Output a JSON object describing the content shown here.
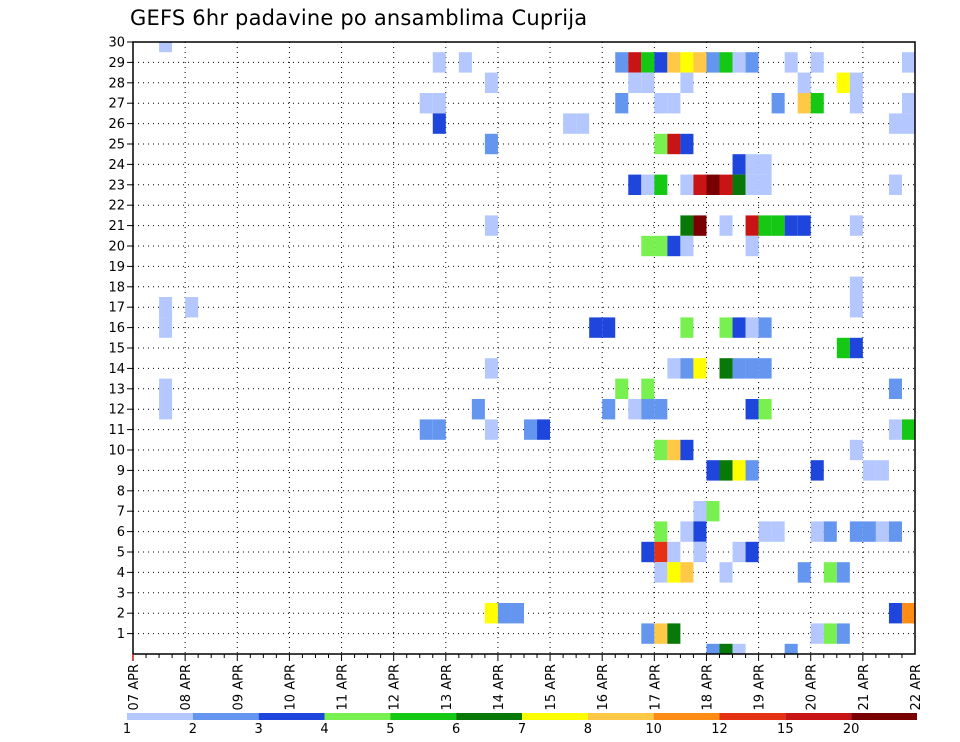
{
  "chart_data": {
    "type": "heatmap",
    "title": "GEFS 6hr padavine po ansamblima Cuprija",
    "xlabel": "",
    "ylabel": "",
    "x_ticks": [
      "07 APR",
      "08 APR",
      "09 APR",
      "10 APR",
      "11 APR",
      "12 APR",
      "13 APR",
      "14 APR",
      "15 APR",
      "16 APR",
      "17 APR",
      "18 APR",
      "19 APR",
      "20 APR",
      "21 APR",
      "22 APR"
    ],
    "x_range": [
      "07 APR",
      "22 APR"
    ],
    "time_step_hours": 6,
    "y_ticks": [
      1,
      2,
      3,
      4,
      5,
      6,
      7,
      8,
      9,
      10,
      11,
      12,
      13,
      14,
      15,
      16,
      17,
      18,
      19,
      20,
      21,
      22,
      23,
      24,
      25,
      26,
      27,
      28,
      29,
      30
    ],
    "y_range": [
      0,
      30
    ],
    "grid": "dotted",
    "legend": {
      "placement": "bottom",
      "labels": [
        "1",
        "2",
        "3",
        "4",
        "5",
        "6",
        "7",
        "8",
        "10",
        "12",
        "15",
        "20"
      ],
      "colors": [
        "#b4c8ff",
        "#6496f0",
        "#1e46dc",
        "#78f050",
        "#14c814",
        "#087808",
        "#ffff00",
        "#ffc846",
        "#ff8c14",
        "#e63214",
        "#c81414",
        "#780000"
      ]
    },
    "cells": [
      {
        "t": 0.5,
        "m": 30,
        "c": 1
      },
      {
        "t": 0.5,
        "m": 17,
        "c": 1
      },
      {
        "t": 1.0,
        "m": 17,
        "c": 1
      },
      {
        "t": 0.5,
        "m": 16,
        "c": 1
      },
      {
        "t": 0.5,
        "m": 13,
        "c": 1
      },
      {
        "t": 0.5,
        "m": 12,
        "c": 1
      },
      {
        "t": 5.75,
        "m": 29,
        "c": 1
      },
      {
        "t": 6.25,
        "m": 29,
        "c": 1
      },
      {
        "t": 5.5,
        "m": 27,
        "c": 1
      },
      {
        "t": 5.75,
        "m": 27,
        "c": 1
      },
      {
        "t": 5.75,
        "m": 26,
        "c": 3
      },
      {
        "t": 5.5,
        "m": 11,
        "c": 2
      },
      {
        "t": 5.75,
        "m": 11,
        "c": 2
      },
      {
        "t": 6.75,
        "m": 28,
        "c": 1
      },
      {
        "t": 6.75,
        "m": 25,
        "c": 2
      },
      {
        "t": 6.75,
        "m": 21,
        "c": 1
      },
      {
        "t": 6.75,
        "m": 14,
        "c": 1
      },
      {
        "t": 6.5,
        "m": 12,
        "c": 2
      },
      {
        "t": 6.75,
        "m": 11,
        "c": 1
      },
      {
        "t": 6.75,
        "m": 2,
        "c": 7
      },
      {
        "t": 7.0,
        "m": 2,
        "c": 2
      },
      {
        "t": 7.25,
        "m": 2,
        "c": 2
      },
      {
        "t": 7.5,
        "m": 11,
        "c": 2
      },
      {
        "t": 7.75,
        "m": 11,
        "c": 3
      },
      {
        "t": 8.25,
        "m": 26,
        "c": 1
      },
      {
        "t": 8.5,
        "m": 26,
        "c": 1
      },
      {
        "t": 8.75,
        "m": 16,
        "c": 3
      },
      {
        "t": 9.0,
        "m": 16,
        "c": 3
      },
      {
        "t": 9.25,
        "m": 29,
        "c": 2
      },
      {
        "t": 9.5,
        "m": 29,
        "c": 11
      },
      {
        "t": 9.75,
        "m": 29,
        "c": 5
      },
      {
        "t": 10.0,
        "m": 29,
        "c": 3
      },
      {
        "t": 10.25,
        "m": 29,
        "c": 8
      },
      {
        "t": 10.5,
        "m": 29,
        "c": 7
      },
      {
        "t": 10.75,
        "m": 29,
        "c": 8
      },
      {
        "t": 11.0,
        "m": 29,
        "c": 2
      },
      {
        "t": 11.25,
        "m": 29,
        "c": 5
      },
      {
        "t": 11.5,
        "m": 29,
        "c": 1
      },
      {
        "t": 11.75,
        "m": 29,
        "c": 2
      },
      {
        "t": 12.5,
        "m": 29,
        "c": 1
      },
      {
        "t": 13.0,
        "m": 29,
        "c": 1
      },
      {
        "t": 14.75,
        "m": 29,
        "c": 1
      },
      {
        "t": 9.5,
        "m": 28,
        "c": 1
      },
      {
        "t": 9.75,
        "m": 28,
        "c": 1
      },
      {
        "t": 10.5,
        "m": 28,
        "c": 1
      },
      {
        "t": 12.75,
        "m": 28,
        "c": 1
      },
      {
        "t": 13.5,
        "m": 28,
        "c": 7
      },
      {
        "t": 13.75,
        "m": 28,
        "c": 1
      },
      {
        "t": 9.25,
        "m": 27,
        "c": 2
      },
      {
        "t": 10.0,
        "m": 27,
        "c": 1
      },
      {
        "t": 10.25,
        "m": 27,
        "c": 1
      },
      {
        "t": 12.25,
        "m": 27,
        "c": 2
      },
      {
        "t": 12.75,
        "m": 27,
        "c": 8
      },
      {
        "t": 13.0,
        "m": 27,
        "c": 5
      },
      {
        "t": 13.75,
        "m": 27,
        "c": 1
      },
      {
        "t": 14.75,
        "m": 27,
        "c": 1
      },
      {
        "t": 14.5,
        "m": 26,
        "c": 1
      },
      {
        "t": 14.75,
        "m": 26,
        "c": 1
      },
      {
        "t": 10.0,
        "m": 25,
        "c": 4
      },
      {
        "t": 10.25,
        "m": 25,
        "c": 11
      },
      {
        "t": 10.5,
        "m": 25,
        "c": 3
      },
      {
        "t": 11.5,
        "m": 24,
        "c": 3
      },
      {
        "t": 11.75,
        "m": 24,
        "c": 1
      },
      {
        "t": 12.0,
        "m": 24,
        "c": 1
      },
      {
        "t": 9.5,
        "m": 23,
        "c": 3
      },
      {
        "t": 9.75,
        "m": 23,
        "c": 1
      },
      {
        "t": 10.0,
        "m": 23,
        "c": 5
      },
      {
        "t": 10.5,
        "m": 23,
        "c": 1
      },
      {
        "t": 10.75,
        "m": 23,
        "c": 11
      },
      {
        "t": 11.0,
        "m": 23,
        "c": 12
      },
      {
        "t": 11.25,
        "m": 23,
        "c": 11
      },
      {
        "t": 11.5,
        "m": 23,
        "c": 6
      },
      {
        "t": 11.75,
        "m": 23,
        "c": 1
      },
      {
        "t": 12.0,
        "m": 23,
        "c": 1
      },
      {
        "t": 14.5,
        "m": 23,
        "c": 1
      },
      {
        "t": 10.5,
        "m": 21,
        "c": 6
      },
      {
        "t": 10.75,
        "m": 21,
        "c": 12
      },
      {
        "t": 11.25,
        "m": 21,
        "c": 1
      },
      {
        "t": 11.75,
        "m": 21,
        "c": 11
      },
      {
        "t": 12.0,
        "m": 21,
        "c": 5
      },
      {
        "t": 12.25,
        "m": 21,
        "c": 5
      },
      {
        "t": 12.5,
        "m": 21,
        "c": 3
      },
      {
        "t": 12.75,
        "m": 21,
        "c": 3
      },
      {
        "t": 13.75,
        "m": 21,
        "c": 1
      },
      {
        "t": 9.75,
        "m": 20,
        "c": 4
      },
      {
        "t": 10.0,
        "m": 20,
        "c": 4
      },
      {
        "t": 10.25,
        "m": 20,
        "c": 3
      },
      {
        "t": 10.5,
        "m": 20,
        "c": 1
      },
      {
        "t": 11.75,
        "m": 20,
        "c": 1
      },
      {
        "t": 13.75,
        "m": 18,
        "c": 1
      },
      {
        "t": 13.75,
        "m": 17,
        "c": 1
      },
      {
        "t": 10.5,
        "m": 16,
        "c": 4
      },
      {
        "t": 11.25,
        "m": 16,
        "c": 4
      },
      {
        "t": 11.5,
        "m": 16,
        "c": 3
      },
      {
        "t": 11.75,
        "m": 16,
        "c": 1
      },
      {
        "t": 12.0,
        "m": 16,
        "c": 2
      },
      {
        "t": 13.5,
        "m": 15,
        "c": 5
      },
      {
        "t": 13.75,
        "m": 15,
        "c": 3
      },
      {
        "t": 10.25,
        "m": 14,
        "c": 1
      },
      {
        "t": 10.5,
        "m": 14,
        "c": 2
      },
      {
        "t": 10.75,
        "m": 14,
        "c": 7
      },
      {
        "t": 11.25,
        "m": 14,
        "c": 6
      },
      {
        "t": 11.5,
        "m": 14,
        "c": 2
      },
      {
        "t": 11.75,
        "m": 14,
        "c": 2
      },
      {
        "t": 12.0,
        "m": 14,
        "c": 2
      },
      {
        "t": 9.25,
        "m": 13,
        "c": 4
      },
      {
        "t": 9.75,
        "m": 13,
        "c": 4
      },
      {
        "t": 14.5,
        "m": 13,
        "c": 2
      },
      {
        "t": 9.0,
        "m": 12,
        "c": 2
      },
      {
        "t": 9.5,
        "m": 12,
        "c": 1
      },
      {
        "t": 9.75,
        "m": 12,
        "c": 2
      },
      {
        "t": 10.0,
        "m": 12,
        "c": 2
      },
      {
        "t": 11.75,
        "m": 12,
        "c": 3
      },
      {
        "t": 12.0,
        "m": 12,
        "c": 4
      },
      {
        "t": 14.5,
        "m": 11,
        "c": 1
      },
      {
        "t": 14.75,
        "m": 11,
        "c": 5
      },
      {
        "t": 10.0,
        "m": 10,
        "c": 4
      },
      {
        "t": 10.25,
        "m": 10,
        "c": 8
      },
      {
        "t": 10.5,
        "m": 10,
        "c": 3
      },
      {
        "t": 13.75,
        "m": 10,
        "c": 1
      },
      {
        "t": 11.0,
        "m": 9,
        "c": 3
      },
      {
        "t": 11.25,
        "m": 9,
        "c": 6
      },
      {
        "t": 11.5,
        "m": 9,
        "c": 7
      },
      {
        "t": 11.75,
        "m": 9,
        "c": 2
      },
      {
        "t": 13.0,
        "m": 9,
        "c": 3
      },
      {
        "t": 14.0,
        "m": 9,
        "c": 1
      },
      {
        "t": 14.25,
        "m": 9,
        "c": 1
      },
      {
        "t": 10.75,
        "m": 7,
        "c": 1
      },
      {
        "t": 11.0,
        "m": 7,
        "c": 4
      },
      {
        "t": 10.0,
        "m": 6,
        "c": 4
      },
      {
        "t": 10.5,
        "m": 6,
        "c": 1
      },
      {
        "t": 10.75,
        "m": 6,
        "c": 3
      },
      {
        "t": 12.0,
        "m": 6,
        "c": 1
      },
      {
        "t": 12.25,
        "m": 6,
        "c": 1
      },
      {
        "t": 13.0,
        "m": 6,
        "c": 1
      },
      {
        "t": 13.25,
        "m": 6,
        "c": 2
      },
      {
        "t": 13.75,
        "m": 6,
        "c": 2
      },
      {
        "t": 14.0,
        "m": 6,
        "c": 2
      },
      {
        "t": 14.25,
        "m": 6,
        "c": 1
      },
      {
        "t": 14.5,
        "m": 6,
        "c": 2
      },
      {
        "t": 9.75,
        "m": 5,
        "c": 3
      },
      {
        "t": 10.0,
        "m": 5,
        "c": 10
      },
      {
        "t": 10.25,
        "m": 5,
        "c": 1
      },
      {
        "t": 10.75,
        "m": 5,
        "c": 1
      },
      {
        "t": 11.5,
        "m": 5,
        "c": 1
      },
      {
        "t": 11.75,
        "m": 5,
        "c": 3
      },
      {
        "t": 10.0,
        "m": 4,
        "c": 1
      },
      {
        "t": 10.25,
        "m": 4,
        "c": 7
      },
      {
        "t": 10.5,
        "m": 4,
        "c": 8
      },
      {
        "t": 11.25,
        "m": 4,
        "c": 1
      },
      {
        "t": 12.75,
        "m": 4,
        "c": 2
      },
      {
        "t": 13.25,
        "m": 4,
        "c": 4
      },
      {
        "t": 13.5,
        "m": 4,
        "c": 2
      },
      {
        "t": 14.75,
        "m": 2,
        "c": 9
      },
      {
        "t": 14.5,
        "m": 2,
        "c": 3
      },
      {
        "t": 9.75,
        "m": 1,
        "c": 2
      },
      {
        "t": 10.0,
        "m": 1,
        "c": 8
      },
      {
        "t": 10.25,
        "m": 1,
        "c": 6
      },
      {
        "t": 13.0,
        "m": 1,
        "c": 1
      },
      {
        "t": 13.25,
        "m": 1,
        "c": 4
      },
      {
        "t": 13.5,
        "m": 1,
        "c": 2
      },
      {
        "t": 11.0,
        "m": 0,
        "c": 2
      },
      {
        "t": 11.25,
        "m": 0,
        "c": 6
      },
      {
        "t": 11.5,
        "m": 0,
        "c": 1
      },
      {
        "t": 12.5,
        "m": 0,
        "c": 2
      }
    ]
  }
}
